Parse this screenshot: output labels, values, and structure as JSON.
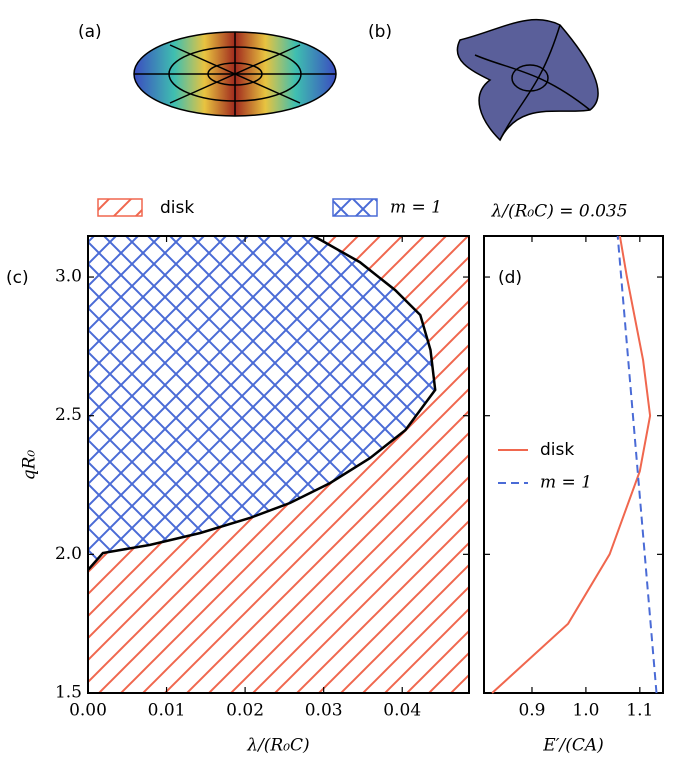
{
  "illustrations": {
    "labels": [
      "(a)",
      "(b)"
    ]
  },
  "chart_data": [
    {
      "type": "region",
      "panel_label": "(c)",
      "x_label": "λ/(R₀C)",
      "y_label": "qR₀",
      "xlim": [
        0,
        0.0485
      ],
      "ylim": [
        1.5,
        3.148
      ],
      "xticks": [
        {
          "value": 0,
          "label": "0.00"
        },
        {
          "value": 0.01,
          "label": "0.01"
        },
        {
          "value": 0.02,
          "label": "0.02"
        },
        {
          "value": 0.03,
          "label": "0.03"
        },
        {
          "value": 0.04,
          "label": "0.04"
        }
      ],
      "yticks": [
        1.5,
        {
          "value": 2,
          "label": "2.0"
        },
        2.5,
        {
          "value": 3,
          "label": "3.0"
        }
      ],
      "regions": [
        {
          "name": "disk",
          "color": "#f0674e"
        },
        {
          "name": "m = 1",
          "color": "#4a6bd6"
        }
      ],
      "boundary": {
        "x": [
          0,
          0.0019,
          0.0079,
          0.0143,
          0.0206,
          0.0257,
          0.0308,
          0.0359,
          0.0404,
          0.0442,
          0.0436,
          0.0423,
          0.0391,
          0.0346,
          0.0296,
          0.0287
        ],
        "y": [
          1.944,
          2.005,
          2.034,
          2.077,
          2.131,
          2.185,
          2.257,
          2.347,
          2.448,
          2.593,
          2.737,
          2.863,
          2.953,
          3.054,
          3.134,
          3.148
        ]
      }
    },
    {
      "type": "line",
      "panel_label": "(d)",
      "title": "λ/(R₀C) = 0.035",
      "x_label": "E′/(CA)",
      "xlim": [
        0.811,
        1.143
      ],
      "ylim": [
        1.5,
        3.148
      ],
      "xticks": [
        0.9,
        {
          "value": 1,
          "label": "1.0"
        },
        1.1
      ],
      "yticks": [
        1.5,
        2,
        2.5,
        3
      ],
      "series": [
        {
          "name": "disk",
          "color": "#f0674e",
          "dash": false,
          "x": [
            0.826,
            0.967,
            1.044,
            1.1,
            1.119,
            1.106,
            1.076,
            1.063
          ],
          "y": [
            1.5,
            1.75,
            2.0,
            2.3,
            2.5,
            2.7,
            3.0,
            3.148
          ]
        },
        {
          "name": "m = 1",
          "color": "#4a6bd6",
          "dash": true,
          "x": [
            1.131,
            1.059
          ],
          "y": [
            1.5,
            3.148
          ]
        }
      ]
    }
  ]
}
